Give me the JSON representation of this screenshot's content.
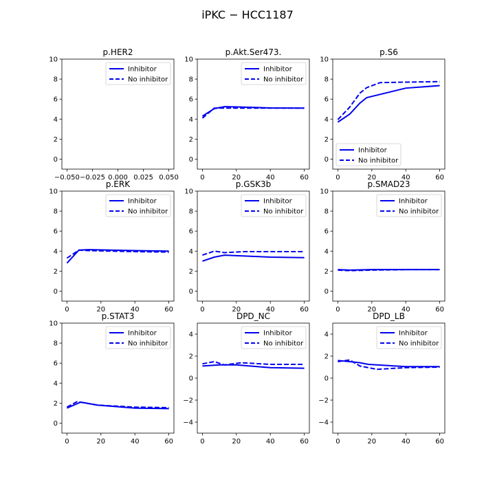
{
  "figure": {
    "title": "iPKC − HCC1187"
  },
  "chart_data": [
    {
      "type": "line",
      "title": "p.HER2",
      "ylim": [
        -1,
        10
      ],
      "xlim": [
        -0.055,
        0.055
      ],
      "xticks": [
        -0.05,
        -0.025,
        0.0,
        0.025,
        0.05
      ],
      "xtick_labels": [
        "−0.050",
        "−0.025",
        "0.000",
        "0.025",
        "0.050"
      ],
      "yticks": [
        0,
        2,
        4,
        6,
        8,
        10
      ],
      "legend_position": "upper-right",
      "series": [
        {
          "name": "Inhibitor",
          "style": "solid",
          "x": [],
          "y": []
        },
        {
          "name": "No inhibitor",
          "style": "dashed",
          "x": [],
          "y": []
        }
      ]
    },
    {
      "type": "line",
      "title": "p.Akt.Ser473.",
      "ylim": [
        -1,
        10
      ],
      "xlim": [
        -3,
        63
      ],
      "xticks": [
        0,
        20,
        40,
        60
      ],
      "yticks": [
        0,
        2,
        4,
        6,
        8,
        10
      ],
      "legend_position": "upper-right",
      "series": [
        {
          "name": "Inhibitor",
          "style": "solid",
          "x": [
            0,
            7,
            13,
            20,
            40,
            60
          ],
          "y": [
            4.3,
            5.05,
            5.25,
            5.22,
            5.12,
            5.1
          ]
        },
        {
          "name": "No inhibitor",
          "style": "dashed",
          "x": [
            0,
            7,
            13,
            20,
            40,
            60
          ],
          "y": [
            4.1,
            5.1,
            5.1,
            5.1,
            5.1,
            5.1
          ]
        }
      ]
    },
    {
      "type": "line",
      "title": "p.S6",
      "ylim": [
        -1,
        10
      ],
      "xlim": [
        -3,
        63
      ],
      "xticks": [
        0,
        20,
        40,
        60
      ],
      "yticks": [
        0,
        2,
        4,
        6,
        8,
        10
      ],
      "legend_position": "lower-left",
      "series": [
        {
          "name": "Inhibitor",
          "style": "solid",
          "x": [
            0,
            7,
            13,
            17,
            40,
            60
          ],
          "y": [
            3.7,
            4.5,
            5.6,
            6.15,
            7.1,
            7.35
          ]
        },
        {
          "name": "No inhibitor",
          "style": "dashed",
          "x": [
            0,
            7,
            13,
            17,
            25,
            40,
            60
          ],
          "y": [
            3.95,
            5.2,
            6.6,
            7.15,
            7.65,
            7.7,
            7.75
          ]
        }
      ]
    },
    {
      "type": "line",
      "title": "p.ERK",
      "ylim": [
        -1,
        10
      ],
      "xlim": [
        -3,
        63
      ],
      "xticks": [
        0,
        20,
        40,
        60
      ],
      "yticks": [
        0,
        2,
        4,
        6,
        8,
        10
      ],
      "legend_position": "upper-right",
      "series": [
        {
          "name": "Inhibitor",
          "style": "solid",
          "x": [
            0,
            7,
            13,
            40,
            60
          ],
          "y": [
            2.8,
            4.1,
            4.15,
            4.05,
            4.0
          ]
        },
        {
          "name": "No inhibitor",
          "style": "dashed",
          "x": [
            0,
            7,
            13,
            40,
            60
          ],
          "y": [
            3.3,
            4.1,
            4.05,
            3.95,
            3.9
          ]
        }
      ]
    },
    {
      "type": "line",
      "title": "p.GSK3b",
      "ylim": [
        -1,
        10
      ],
      "xlim": [
        -3,
        63
      ],
      "xticks": [
        0,
        20,
        40,
        60
      ],
      "yticks": [
        0,
        2,
        4,
        6,
        8,
        10
      ],
      "legend_position": "upper-right",
      "series": [
        {
          "name": "Inhibitor",
          "style": "solid",
          "x": [
            0,
            7,
            13,
            40,
            60
          ],
          "y": [
            3.0,
            3.4,
            3.6,
            3.4,
            3.35
          ]
        },
        {
          "name": "No inhibitor",
          "style": "dashed",
          "x": [
            0,
            7,
            13,
            25,
            40,
            60
          ],
          "y": [
            3.6,
            4.0,
            3.85,
            3.95,
            3.95,
            3.95
          ]
        }
      ]
    },
    {
      "type": "line",
      "title": "p.SMAD23",
      "ylim": [
        -1,
        10
      ],
      "xlim": [
        -3,
        63
      ],
      "xticks": [
        0,
        20,
        40,
        60
      ],
      "yticks": [
        0,
        2,
        4,
        6,
        8,
        10
      ],
      "legend_position": "upper-right",
      "series": [
        {
          "name": "Inhibitor",
          "style": "solid",
          "x": [
            0,
            7,
            20,
            40,
            60
          ],
          "y": [
            2.15,
            2.1,
            2.15,
            2.15,
            2.15
          ]
        },
        {
          "name": "No inhibitor",
          "style": "dashed",
          "x": [
            0,
            7,
            20,
            40,
            60
          ],
          "y": [
            2.1,
            2.05,
            2.1,
            2.15,
            2.15
          ]
        }
      ]
    },
    {
      "type": "line",
      "title": "p.STAT3",
      "ylim": [
        -1,
        10
      ],
      "xlim": [
        -3,
        63
      ],
      "xticks": [
        0,
        20,
        40,
        60
      ],
      "yticks": [
        0,
        2,
        4,
        6,
        8,
        10
      ],
      "legend_position": "upper-right",
      "series": [
        {
          "name": "Inhibitor",
          "style": "solid",
          "x": [
            0,
            8,
            18,
            40,
            60
          ],
          "y": [
            1.5,
            2.1,
            1.8,
            1.5,
            1.45
          ]
        },
        {
          "name": "No inhibitor",
          "style": "dashed",
          "x": [
            0,
            6,
            18,
            40,
            60
          ],
          "y": [
            1.6,
            2.15,
            1.8,
            1.6,
            1.55
          ]
        }
      ]
    },
    {
      "type": "line",
      "title": "DPD_NC",
      "ylim": [
        -5,
        5
      ],
      "xlim": [
        -3,
        63
      ],
      "xticks": [
        0,
        20,
        40,
        60
      ],
      "yticks": [
        -4,
        -2,
        0,
        2,
        4
      ],
      "legend_position": "upper-right",
      "series": [
        {
          "name": "Inhibitor",
          "style": "solid",
          "x": [
            0,
            10,
            20,
            40,
            60
          ],
          "y": [
            1.1,
            1.2,
            1.2,
            0.95,
            0.9
          ]
        },
        {
          "name": "No inhibitor",
          "style": "dashed",
          "x": [
            0,
            7,
            13,
            23,
            40,
            60
          ],
          "y": [
            1.3,
            1.5,
            1.2,
            1.4,
            1.25,
            1.25
          ]
        }
      ]
    },
    {
      "type": "line",
      "title": "DPD_LB",
      "ylim": [
        -5,
        5
      ],
      "xlim": [
        -3,
        63
      ],
      "xticks": [
        0,
        20,
        40,
        60
      ],
      "yticks": [
        -4,
        -2,
        0,
        2,
        4
      ],
      "legend_position": "upper-right",
      "series": [
        {
          "name": "Inhibitor",
          "style": "solid",
          "x": [
            0,
            7,
            13,
            18,
            40,
            60
          ],
          "y": [
            1.6,
            1.5,
            1.4,
            1.25,
            1.05,
            1.05
          ]
        },
        {
          "name": "No inhibitor",
          "style": "dashed",
          "x": [
            0,
            7,
            13,
            23,
            40,
            60
          ],
          "y": [
            1.5,
            1.65,
            1.1,
            0.8,
            0.95,
            1.0
          ]
        }
      ]
    }
  ],
  "colors": {
    "line": "#0000ee"
  }
}
